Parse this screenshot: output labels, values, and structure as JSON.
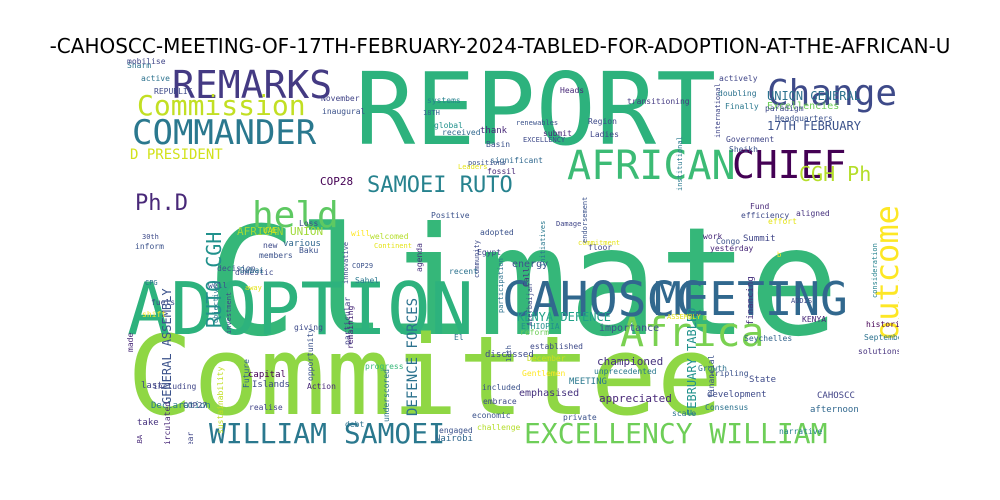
{
  "title": "-CAHOSCC-MEETING-OF-17TH-FEBRUARY-2024-TABLED-FOR-ADOPTION-AT-THE-AFRICAN-U",
  "words": [
    {
      "text": "Climate",
      "color": "#35b779",
      "size": 150,
      "rot": false
    },
    {
      "text": "Committee",
      "color": "#8fd744",
      "size": 110,
      "rot": false
    },
    {
      "text": "REPORT",
      "color": "#2db27d",
      "size": 100,
      "rot": false
    },
    {
      "text": "ADOPTION",
      "color": "#2db27d",
      "size": 72,
      "rot": false
    },
    {
      "text": "CAHOSCC",
      "color": "#31688e",
      "size": 48,
      "rot": false
    },
    {
      "text": "MEETING",
      "color": "#31688e",
      "size": 46,
      "rot": false
    },
    {
      "text": "REMARKS",
      "color": "#443a83",
      "size": 38,
      "rot": false
    },
    {
      "text": "COMMANDER",
      "color": "#2a788e",
      "size": 34,
      "rot": false
    },
    {
      "text": "AFRICAN",
      "color": "#3cbb75",
      "size": 40,
      "rot": false
    },
    {
      "text": "Africa",
      "color": "#7ad151",
      "size": 40,
      "rot": false
    },
    {
      "text": "Change",
      "color": "#3e4a89",
      "size": 36,
      "rot": false
    },
    {
      "text": "CHIEF",
      "color": "#440154",
      "size": 38,
      "rot": false
    },
    {
      "text": "held",
      "color": "#5ec962",
      "size": 36,
      "rot": false
    },
    {
      "text": "outcome",
      "color": "#fde725",
      "size": 32,
      "rot": true
    },
    {
      "text": "Commission",
      "color": "#c2df23",
      "size": 28,
      "rot": false
    },
    {
      "text": "WILLIAM SAMOEI",
      "color": "#2a788e",
      "size": 28,
      "rot": false
    },
    {
      "text": "EXCELLENCY WILLIAM",
      "color": "#6ece58",
      "size": 28,
      "rot": false
    },
    {
      "text": "SAMOEI RUTO",
      "color": "#26828e",
      "size": 22,
      "rot": false
    },
    {
      "text": "CGH Ph",
      "color": "#b5de2b",
      "size": 20,
      "rot": false
    },
    {
      "text": "Ph.D",
      "color": "#482878",
      "size": 22,
      "rot": false
    },
    {
      "text": "RUTO CGH",
      "color": "#21918c",
      "size": 20,
      "rot": true
    },
    {
      "text": "D PRESIDENT",
      "color": "#d2e21b",
      "size": 14,
      "rot": false
    },
    {
      "text": "DEFENCE FORCES",
      "color": "#2c728e",
      "size": 14,
      "rot": true
    },
    {
      "text": "17TH FEBRUARY",
      "color": "#3b528b",
      "size": 12,
      "rot": false
    },
    {
      "text": "UNION GENERAL",
      "color": "#2c728e",
      "size": 12,
      "rot": false
    },
    {
      "text": "Excellencies",
      "color": "#6ece58",
      "size": 10,
      "rot": false
    },
    {
      "text": "GENERAL ASSEMBLY",
      "color": "#3b528b",
      "size": 12,
      "rot": true
    },
    {
      "text": "AFRICAN UNION",
      "color": "#a0da39",
      "size": 11,
      "rot": false
    },
    {
      "text": "FEBRUARY TABLED",
      "color": "#21918c",
      "size": 12,
      "rot": true
    },
    {
      "text": "KENYA DEFENCE",
      "color": "#1fa188",
      "size": 12,
      "rot": false
    },
    {
      "text": "COP28",
      "color": "#440154",
      "size": 11,
      "rot": false
    },
    {
      "text": "championed",
      "color": "#46327e",
      "size": 11,
      "rot": false
    },
    {
      "text": "appreciated",
      "color": "#482878",
      "size": 11,
      "rot": false
    },
    {
      "text": "emphasised",
      "color": "#46327e",
      "size": 10,
      "rot": false
    },
    {
      "text": "importance",
      "color": "#3b528b",
      "size": 10,
      "rot": false
    },
    {
      "text": "energy",
      "color": "#3b528b",
      "size": 10,
      "rot": false
    },
    {
      "text": "financing",
      "color": "#46327e",
      "size": 9,
      "rot": true
    },
    {
      "text": "Summit",
      "color": "#404688",
      "size": 9,
      "rot": false
    },
    {
      "text": "various",
      "color": "#31688e",
      "size": 9,
      "rot": false
    },
    {
      "text": "CAHOSCC",
      "color": "#414487",
      "size": 9,
      "rot": false
    },
    {
      "text": "afternoon",
      "color": "#31688e",
      "size": 9,
      "rot": false
    },
    {
      "text": "development",
      "color": "#3e4a89",
      "size": 9,
      "rot": false
    },
    {
      "text": "Consensus",
      "color": "#2c728e",
      "size": 8,
      "rot": false
    },
    {
      "text": "Seychelles",
      "color": "#33638d",
      "size": 8,
      "rot": false
    },
    {
      "text": "unprecedented",
      "color": "#2a788e",
      "size": 8,
      "rot": false
    },
    {
      "text": "State",
      "color": "#3e4a89",
      "size": 9,
      "rot": false
    },
    {
      "text": "MEETING",
      "color": "#2a788e",
      "size": 9,
      "rot": false
    },
    {
      "text": "December",
      "color": "#c8e020",
      "size": 8,
      "rot": false
    },
    {
      "text": "Gentlemen",
      "color": "#fde725",
      "size": 8,
      "rot": false
    },
    {
      "text": "discussed",
      "color": "#3e4a89",
      "size": 9,
      "rot": false
    },
    {
      "text": "included",
      "color": "#3b528b",
      "size": 8,
      "rot": false
    },
    {
      "text": "embrace",
      "color": "#3e4a89",
      "size": 8,
      "rot": false
    },
    {
      "text": "economic",
      "color": "#3b528b",
      "size": 8,
      "rot": false
    },
    {
      "text": "private",
      "color": "#3b528b",
      "size": 8,
      "rot": false
    },
    {
      "text": "challenge",
      "color": "#b5de2b",
      "size": 8,
      "rot": false
    },
    {
      "text": "scale",
      "color": "#2c728e",
      "size": 8,
      "rot": false
    },
    {
      "text": "engaged",
      "color": "#3b528b",
      "size": 8,
      "rot": false
    },
    {
      "text": "Nairobi",
      "color": "#31688e",
      "size": 9,
      "rot": false
    },
    {
      "text": "progress",
      "color": "#35b779",
      "size": 8,
      "rot": false
    },
    {
      "text": "underscored",
      "color": "#2c728e",
      "size": 8,
      "rot": true
    },
    {
      "text": "particular",
      "color": "#414487",
      "size": 8,
      "rot": true
    },
    {
      "text": "remaining",
      "color": "#482878",
      "size": 8,
      "rot": true
    },
    {
      "text": "Future",
      "color": "#33638d",
      "size": 8,
      "rot": true
    },
    {
      "text": "capital",
      "color": "#440154",
      "size": 9,
      "rot": false
    },
    {
      "text": "Islands",
      "color": "#3e4a89",
      "size": 9,
      "rot": false
    },
    {
      "text": "Action",
      "color": "#482878",
      "size": 8,
      "rot": false
    },
    {
      "text": "realise",
      "color": "#414487",
      "size": 8,
      "rot": false
    },
    {
      "text": "giving",
      "color": "#3e4a89",
      "size": 8,
      "rot": false
    },
    {
      "text": "opportunity",
      "color": "#3b528b",
      "size": 8,
      "rot": true
    },
    {
      "text": "sustainability",
      "color": "#c2df23",
      "size": 8,
      "rot": true
    },
    {
      "text": "including",
      "color": "#404688",
      "size": 8,
      "rot": false
    },
    {
      "text": "shift",
      "color": "#fde725",
      "size": 8,
      "rot": false
    },
    {
      "text": "made",
      "color": "#482878",
      "size": 8,
      "rot": true
    },
    {
      "text": "Declaration",
      "color": "#2a788e",
      "size": 9,
      "rot": false
    },
    {
      "text": "COP27",
      "color": "#3e4a89",
      "size": 8,
      "rot": false
    },
    {
      "text": "circulated",
      "color": "#482878",
      "size": 8,
      "rot": true
    },
    {
      "text": "last",
      "color": "#414487",
      "size": 9,
      "rot": false
    },
    {
      "text": "take",
      "color": "#46327e",
      "size": 9,
      "rot": false
    },
    {
      "text": "ABABA",
      "color": "#482878",
      "size": 7,
      "rot": true
    },
    {
      "text": "year",
      "color": "#404688",
      "size": 8,
      "rot": true
    },
    {
      "text": "narrative",
      "color": "#26828e",
      "size": 8,
      "rot": false
    },
    {
      "text": "Sharm",
      "color": "#2c728e",
      "size": 8,
      "rot": false
    },
    {
      "text": "active",
      "color": "#2c728e",
      "size": 8,
      "rot": false
    },
    {
      "text": "REPUBLIC",
      "color": "#3e4a89",
      "size": 8,
      "rot": false
    },
    {
      "text": "November",
      "color": "#414487",
      "size": 8,
      "rot": false
    },
    {
      "text": "inaugural",
      "color": "#3b528b",
      "size": 8,
      "rot": false
    },
    {
      "text": "systems",
      "color": "#26828e",
      "size": 8,
      "rot": false
    },
    {
      "text": "18TH",
      "color": "#31688e",
      "size": 7,
      "rot": false
    },
    {
      "text": "global",
      "color": "#21918c",
      "size": 8,
      "rot": false
    },
    {
      "text": "received",
      "color": "#31688e",
      "size": 8,
      "rot": false
    },
    {
      "text": "thank",
      "color": "#482878",
      "size": 9,
      "rot": false
    },
    {
      "text": "renewables",
      "color": "#3b528b",
      "size": 7,
      "rot": false
    },
    {
      "text": "EXCELLENCY",
      "color": "#3e4a89",
      "size": 7,
      "rot": false
    },
    {
      "text": "Leaders",
      "color": "#e5e419",
      "size": 7,
      "rot": false
    },
    {
      "text": "significant",
      "color": "#31688e",
      "size": 8,
      "rot": false
    },
    {
      "text": "positions",
      "color": "#3b528b",
      "size": 7,
      "rot": false
    },
    {
      "text": "Heads",
      "color": "#482878",
      "size": 8,
      "rot": false
    },
    {
      "text": "transitioning",
      "color": "#443a83",
      "size": 8,
      "rot": false
    },
    {
      "text": "Region",
      "color": "#3e4a89",
      "size": 8,
      "rot": false
    },
    {
      "text": "Ladies",
      "color": "#404688",
      "size": 8,
      "rot": false
    },
    {
      "text": "submit",
      "color": "#482878",
      "size": 8,
      "rot": false
    },
    {
      "text": "Basin",
      "color": "#3b528b",
      "size": 8,
      "rot": false
    },
    {
      "text": "fossil",
      "color": "#482878",
      "size": 8,
      "rot": false
    },
    {
      "text": "institutional",
      "color": "#2a788e",
      "size": 7,
      "rot": true
    },
    {
      "text": "international",
      "color": "#404688",
      "size": 7,
      "rot": true
    },
    {
      "text": "actively",
      "color": "#404688",
      "size": 8,
      "rot": false
    },
    {
      "text": "doubling",
      "color": "#2c728e",
      "size": 8,
      "rot": false
    },
    {
      "text": "Finally",
      "color": "#2a788e",
      "size": 8,
      "rot": false
    },
    {
      "text": "paradigm",
      "color": "#3e4a89",
      "size": 8,
      "rot": false
    },
    {
      "text": "Headquarters",
      "color": "#3b528b",
      "size": 8,
      "rot": false
    },
    {
      "text": "Government",
      "color": "#404688",
      "size": 8,
      "rot": false
    },
    {
      "text": "Sheikh",
      "color": "#3b528b",
      "size": 8,
      "rot": false
    },
    {
      "text": "effort",
      "color": "#e5e419",
      "size": 8,
      "rot": false
    },
    {
      "text": "Fund",
      "color": "#482878",
      "size": 8,
      "rot": false
    },
    {
      "text": "efficiency",
      "color": "#3e4a89",
      "size": 8,
      "rot": false
    },
    {
      "text": "aligned",
      "color": "#46327e",
      "size": 8,
      "rot": false
    },
    {
      "text": "work",
      "color": "#482878",
      "size": 8,
      "rot": false
    },
    {
      "text": "Congo",
      "color": "#3b528b",
      "size": 8,
      "rot": false
    },
    {
      "text": "yesterday",
      "color": "#482878",
      "size": 8,
      "rot": false
    },
    {
      "text": "consideration",
      "color": "#26828e",
      "size": 7,
      "rot": true
    },
    {
      "text": "ADDIS",
      "color": "#3e4a89",
      "size": 7,
      "rot": false
    },
    {
      "text": "operationalisation",
      "color": "#d8e219",
      "size": 7,
      "rot": true
    },
    {
      "text": "b",
      "color": "#fde725",
      "size": 7,
      "rot": false
    },
    {
      "text": "KENYA",
      "color": "#482878",
      "size": 8,
      "rot": false
    },
    {
      "text": "historic",
      "color": "#440154",
      "size": 8,
      "rot": false
    },
    {
      "text": "September",
      "color": "#2c728e",
      "size": 8,
      "rot": false
    },
    {
      "text": "solutions",
      "color": "#46327e",
      "size": 8,
      "rot": false
    },
    {
      "text": "tripling",
      "color": "#3b528b",
      "size": 8,
      "rot": false
    },
    {
      "text": "financial",
      "color": "#3b528b",
      "size": 8,
      "rot": true
    },
    {
      "text": "Growth",
      "color": "#2c728e",
      "size": 8,
      "rot": false
    },
    {
      "text": "ASSEMBLY",
      "color": "#e5e419",
      "size": 7,
      "rot": false
    },
    {
      "text": "reform",
      "color": "#6ece58",
      "size": 8,
      "rot": false
    },
    {
      "text": "ETHIOPIA",
      "color": "#21918c",
      "size": 8,
      "rot": false
    },
    {
      "text": "established",
      "color": "#3e4a89",
      "size": 8,
      "rot": false
    },
    {
      "text": "floor",
      "color": "#404688",
      "size": 8,
      "rot": false
    },
    {
      "text": "commitment",
      "color": "#e5e419",
      "size": 7,
      "rot": false
    },
    {
      "text": "endorsement",
      "color": "#3b528b",
      "size": 7,
      "rot": true
    },
    {
      "text": "initiatives",
      "color": "#2a788e",
      "size": 7,
      "rot": true
    },
    {
      "text": "Damage",
      "color": "#404688",
      "size": 7,
      "rot": false
    },
    {
      "text": "Azerbaijan",
      "color": "#3e4a89",
      "size": 7,
      "rot": true
    },
    {
      "text": "Call",
      "color": "#46327e",
      "size": 8,
      "rot": true
    },
    {
      "text": "participation",
      "color": "#2c728e",
      "size": 7,
      "rot": true
    },
    {
      "text": "community",
      "color": "#3e4a89",
      "size": 7,
      "rot": true
    },
    {
      "text": "agenda",
      "color": "#46327e",
      "size": 8,
      "rot": true
    },
    {
      "text": "adopted",
      "color": "#3b528b",
      "size": 8,
      "rot": false
    },
    {
      "text": "Egypt",
      "color": "#3e4a89",
      "size": 8,
      "rot": false
    },
    {
      "text": "Continent",
      "color": "#e5e419",
      "size": 7,
      "rot": false
    },
    {
      "text": "welcomed",
      "color": "#b5de2b",
      "size": 8,
      "rot": false
    },
    {
      "text": "recent",
      "color": "#2c728e",
      "size": 8,
      "rot": false
    },
    {
      "text": "Positive",
      "color": "#3b528b",
      "size": 8,
      "rot": false
    },
    {
      "text": "will",
      "color": "#fde725",
      "size": 8,
      "rot": false
    },
    {
      "text": "innovative",
      "color": "#3e4a89",
      "size": 7,
      "rot": true
    },
    {
      "text": "COP29",
      "color": "#3b528b",
      "size": 7,
      "rot": false
    },
    {
      "text": "Sahel",
      "color": "#2a788e",
      "size": 8,
      "rot": false
    },
    {
      "text": "new",
      "color": "#3e4a89",
      "size": 8,
      "rot": false
    },
    {
      "text": "Baku",
      "color": "#3b528b",
      "size": 8,
      "rot": false
    },
    {
      "text": "Loss",
      "color": "#3e4a89",
      "size": 8,
      "rot": false
    },
    {
      "text": "UAE",
      "color": "#e5e419",
      "size": 8,
      "rot": false
    },
    {
      "text": "domestic",
      "color": "#3e4a89",
      "size": 8,
      "rot": false
    },
    {
      "text": "members",
      "color": "#3b528b",
      "size": 8,
      "rot": false
    },
    {
      "text": "Dubai",
      "color": "#2c728e",
      "size": 8,
      "rot": false
    },
    {
      "text": "well",
      "color": "#3b528b",
      "size": 8,
      "rot": false
    },
    {
      "text": "decision",
      "color": "#3b528b",
      "size": 8,
      "rot": false
    },
    {
      "text": "fuels",
      "color": "#3e4a89",
      "size": 8,
      "rot": false
    },
    {
      "text": "CPG",
      "color": "#2c728e",
      "size": 7,
      "rot": false
    },
    {
      "text": "30th",
      "color": "#3e4a89",
      "size": 7,
      "rot": false
    },
    {
      "text": "inform",
      "color": "#3b528b",
      "size": 8,
      "rot": false
    },
    {
      "text": "away",
      "color": "#e5e419",
      "size": 7,
      "rot": false
    },
    {
      "text": "investment",
      "color": "#3e4a89",
      "size": 7,
      "rot": true
    },
    {
      "text": "objectives",
      "color": "#2a788e",
      "size": 7,
      "rot": true
    },
    {
      "text": "13th",
      "color": "#3b528b",
      "size": 7,
      "rot": true
    },
    {
      "text": "El",
      "color": "#2c728e",
      "size": 8,
      "rot": false
    },
    {
      "text": "debt",
      "color": "#2c728e",
      "size": 8,
      "rot": false
    },
    {
      "text": "mobilise",
      "color": "#404688",
      "size": 8,
      "rot": false
    }
  ]
}
